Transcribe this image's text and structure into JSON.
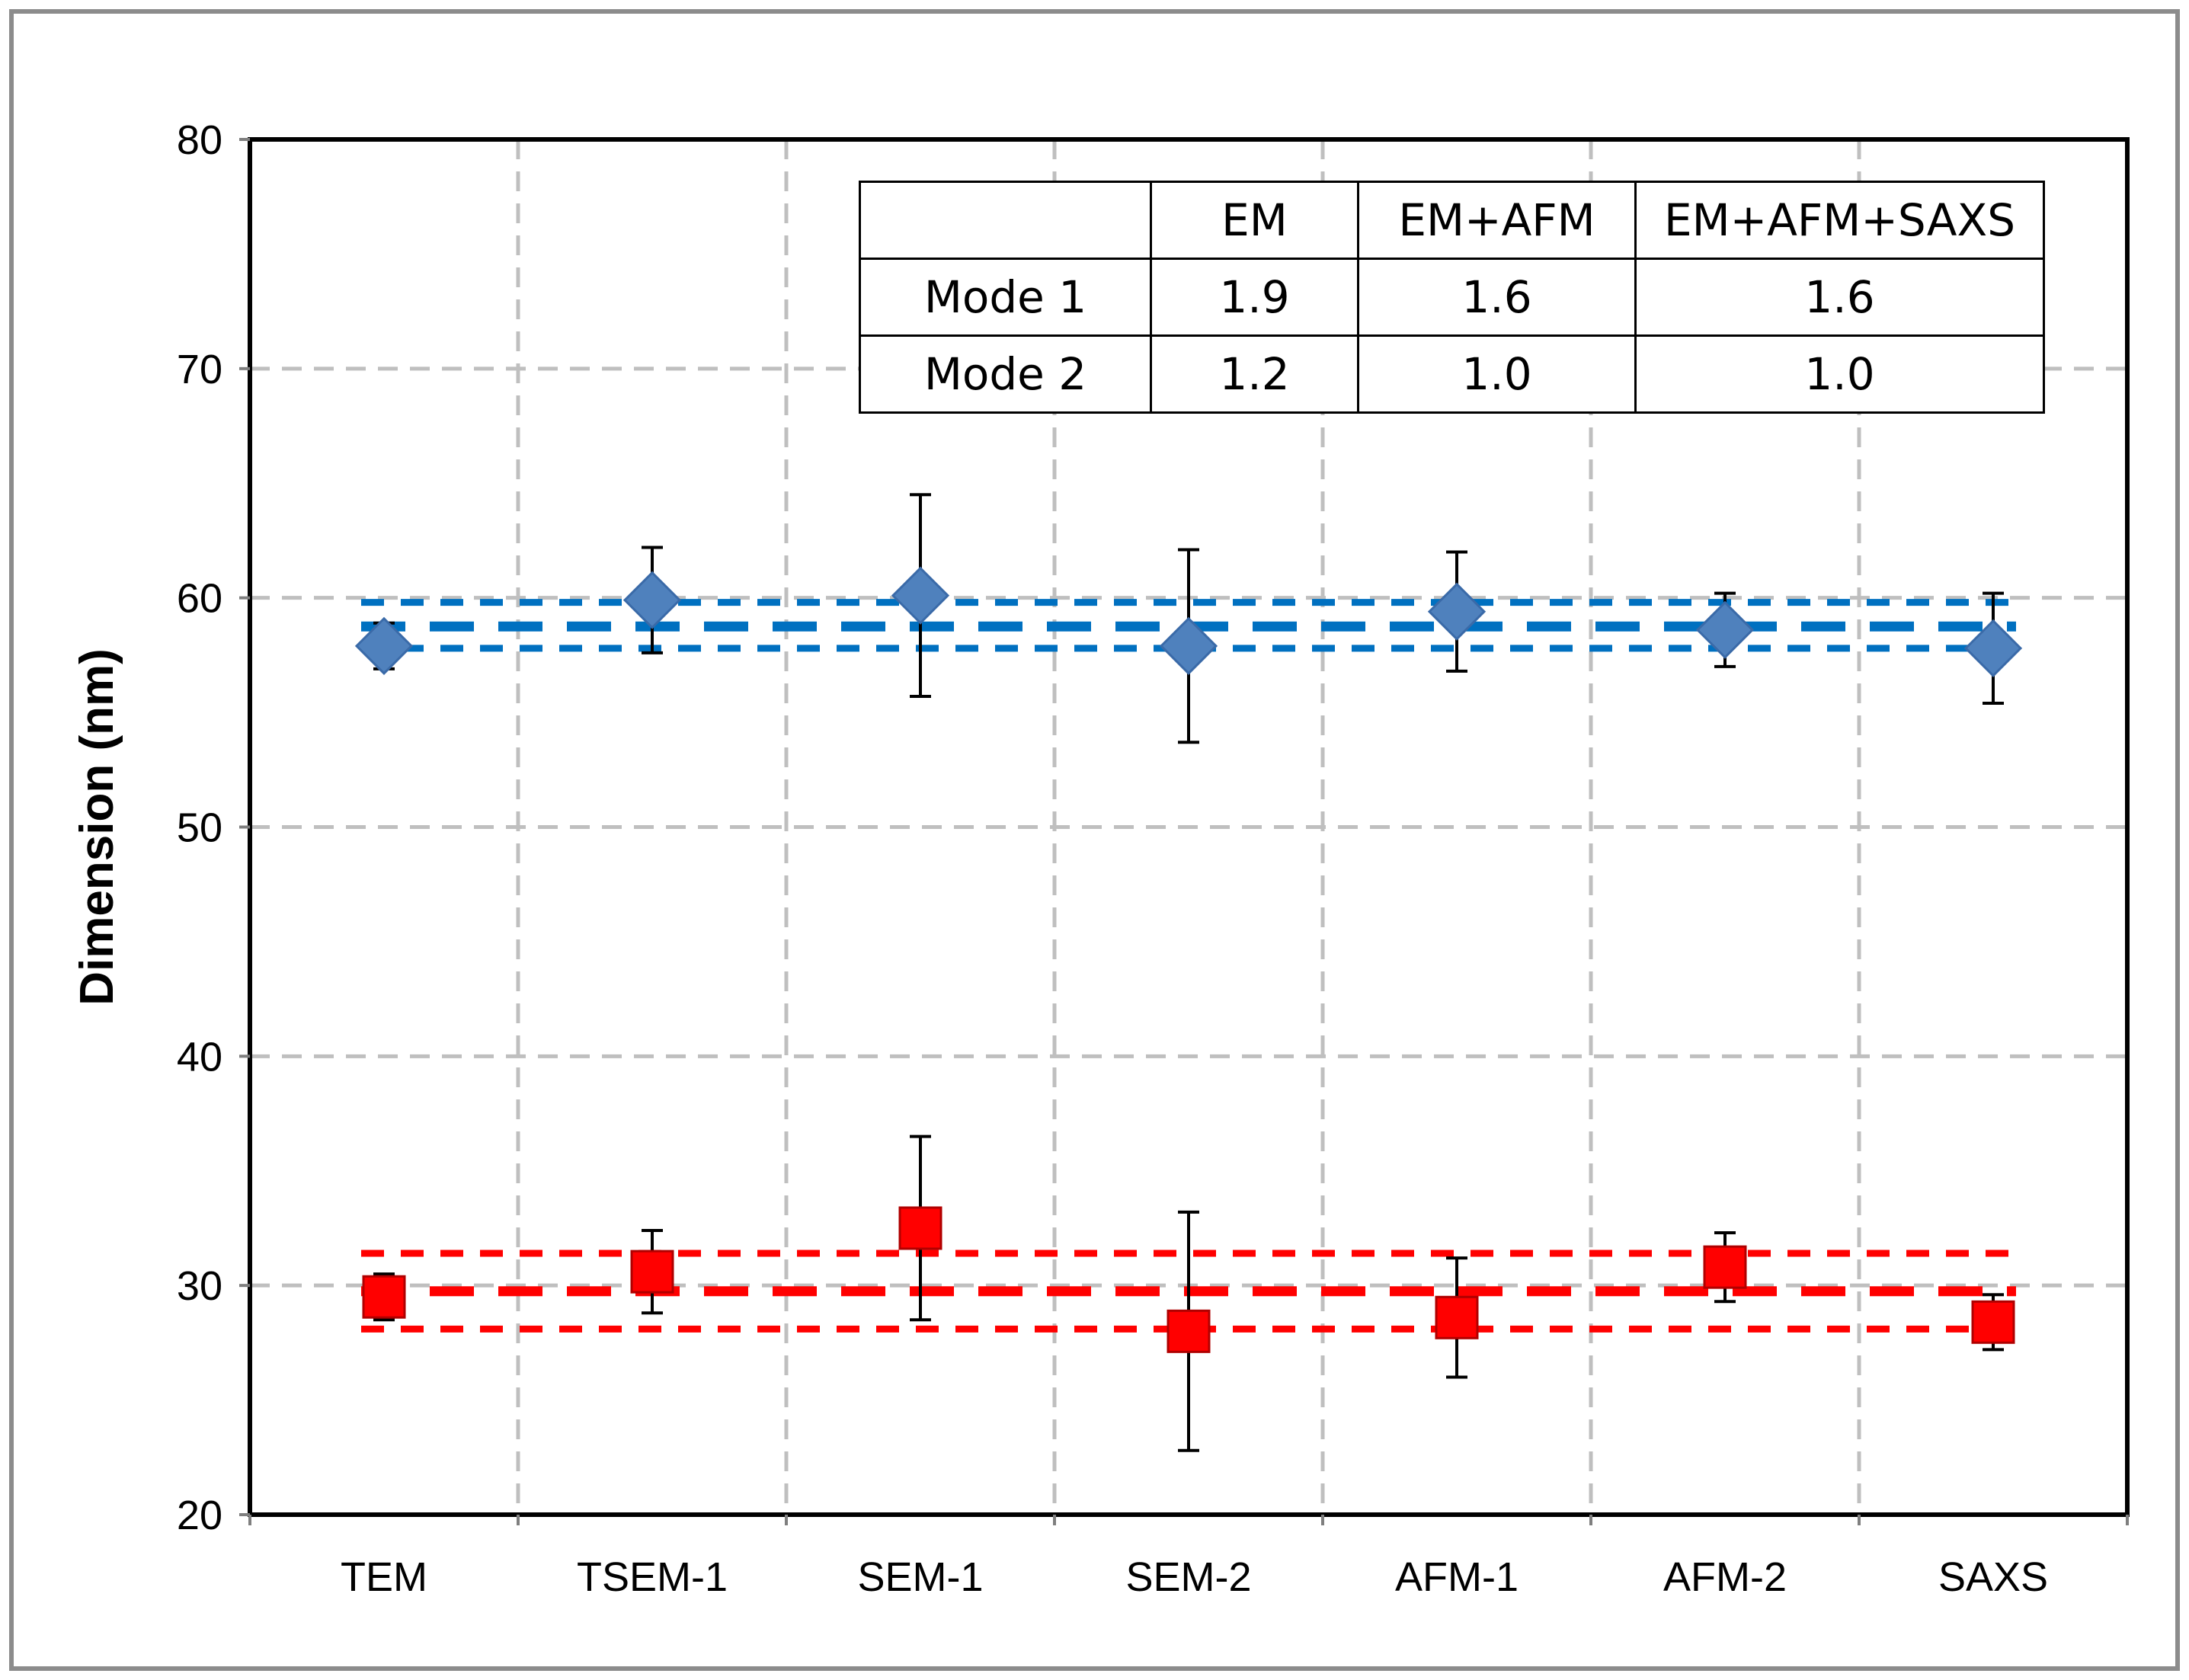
{
  "chart_data": {
    "type": "scatter",
    "title": "",
    "xlabel": "",
    "ylabel": "Dimension (nm)",
    "categories": [
      "TEM",
      "TSEM-1",
      "SEM-1",
      "SEM-2",
      "AFM-1",
      "AFM-2",
      "SAXS"
    ],
    "ylim": [
      20,
      80
    ],
    "yticks": [
      20,
      30,
      40,
      50,
      60,
      70,
      80
    ],
    "grid": true,
    "series": [
      {
        "marker": "diamond",
        "color": "#4f81bd",
        "values": [
          57.9,
          59.9,
          60.1,
          57.9,
          59.4,
          58.6,
          57.8
        ],
        "err_low": [
          56.9,
          57.6,
          55.7,
          53.7,
          56.8,
          57.0,
          55.4
        ],
        "err_high": [
          58.9,
          62.2,
          64.5,
          62.1,
          62.0,
          60.2,
          60.2
        ]
      },
      {
        "marker": "square",
        "color": "#ff0000",
        "values": [
          29.5,
          30.6,
          32.5,
          28.0,
          28.6,
          30.8,
          28.4
        ],
        "err_low": [
          28.5,
          28.8,
          28.5,
          22.8,
          26.0,
          29.3,
          27.2
        ],
        "err_high": [
          30.5,
          32.4,
          36.5,
          33.2,
          31.2,
          32.3,
          29.6
        ]
      }
    ],
    "reference_lines": [
      {
        "y": 58.75,
        "color": "#0070c0",
        "weight": "thick"
      },
      {
        "y": 59.8,
        "color": "#0070c0",
        "weight": "thin"
      },
      {
        "y": 57.8,
        "color": "#0070c0",
        "weight": "thin"
      },
      {
        "y": 29.75,
        "color": "#ff0000",
        "weight": "thick"
      },
      {
        "y": 31.4,
        "color": "#ff0000",
        "weight": "thin"
      },
      {
        "y": 28.1,
        "color": "#ff0000",
        "weight": "thin"
      }
    ]
  },
  "table": {
    "headers": [
      "",
      "EM",
      "EM+AFM",
      "EM+AFM+SAXS"
    ],
    "rows": [
      [
        "Mode 1",
        "1.9",
        "1.6",
        "1.6"
      ],
      [
        "Mode 2",
        "1.2",
        "1.0",
        "1.0"
      ]
    ]
  }
}
